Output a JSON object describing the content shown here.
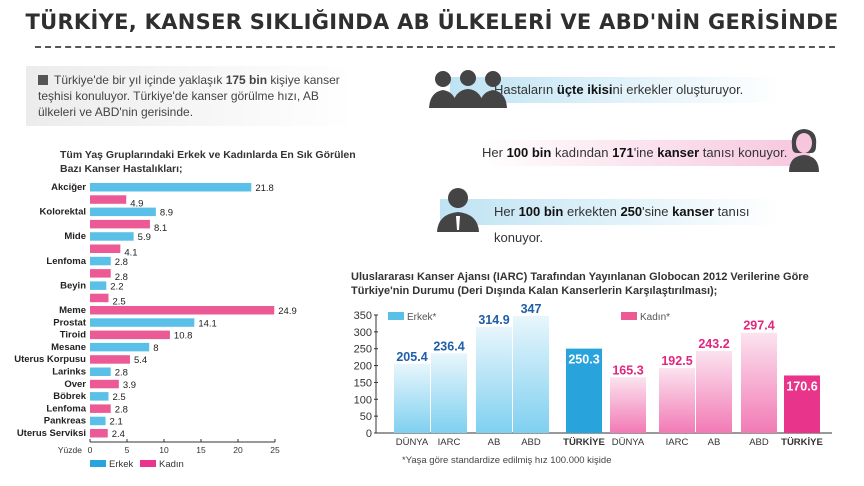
{
  "title": "TÜRKİYE, KANSER SIKLIĞINDA AB ÜLKELERİ VE ABD'NİN GERİSİNDE",
  "intro": {
    "pre": "Türkiye'de bir yıl içinde yaklaşık ",
    "bold": "175 bin",
    "post": " kişiye kanser teşhisi konuluyor. Türkiye'de kanser görülme hızı, AB ülkeleri ve ABD'nin gerisinde."
  },
  "facts": [
    {
      "parts": [
        [
          "Hastaların ",
          false
        ],
        [
          "üçte ikisi",
          true
        ],
        [
          "ni erkekler oluşturuyor.",
          false
        ]
      ],
      "icon": "people-group-icon"
    },
    {
      "parts": [
        [
          "Her ",
          false
        ],
        [
          "100 bin",
          true
        ],
        [
          " kadından ",
          false
        ],
        [
          "171",
          true
        ],
        [
          "'ine ",
          false
        ],
        [
          "kanser",
          true
        ],
        [
          " tanısı konuyor.",
          false
        ]
      ],
      "icon": "woman-icon"
    },
    {
      "parts": [
        [
          "Her ",
          false
        ],
        [
          "100 bin",
          true
        ],
        [
          " erkekten ",
          false
        ],
        [
          "250",
          true
        ],
        [
          "'sine ",
          false
        ],
        [
          "kanser",
          true
        ],
        [
          " tanısı konuyor.",
          false
        ]
      ],
      "icon": "man-icon"
    }
  ],
  "colors": {
    "erkek": "#5bc0e8",
    "kadin": "#ec5a96",
    "erkek_dark": "#29a3dc",
    "kadin_dark": "#e8348a",
    "erkek_text": "#1d5fa8",
    "kadin_text": "#e0267f"
  },
  "chart_data": [
    {
      "type": "bar",
      "orientation": "horizontal",
      "title": "Tüm Yaş Gruplarındaki Erkek ve Kadınlarda En Sık Görülen Bazı Kanser Hastalıkları;",
      "xlabel": "Yüzde",
      "xlim": [
        0,
        25
      ],
      "xticks": [
        0,
        5,
        10,
        15,
        20,
        25
      ],
      "legend": [
        {
          "name": "Erkek",
          "key": "erkek"
        },
        {
          "name": "Kadın",
          "key": "kadin"
        }
      ],
      "legend_position": "bottom-left",
      "bars": [
        {
          "label": "Akciğer",
          "sex": "erkek",
          "value": 21.8
        },
        {
          "label": "",
          "sex": "kadin",
          "value": 4.9
        },
        {
          "label": "Kolorektal",
          "sex": "erkek",
          "value": 8.9
        },
        {
          "label": "",
          "sex": "kadin",
          "value": 8.1
        },
        {
          "label": "Mide",
          "sex": "erkek",
          "value": 5.9
        },
        {
          "label": "",
          "sex": "kadin",
          "value": 4.1
        },
        {
          "label": "Lenfoma",
          "sex": "erkek",
          "value": 2.8
        },
        {
          "label": "",
          "sex": "kadin",
          "value": 2.8
        },
        {
          "label": "Beyin",
          "sex": "erkek",
          "value": 2.2
        },
        {
          "label": "",
          "sex": "kadin",
          "value": 2.5
        },
        {
          "label": "Meme",
          "sex": "kadin",
          "value": 24.9
        },
        {
          "label": "Prostat",
          "sex": "erkek",
          "value": 14.1
        },
        {
          "label": "Tiroid",
          "sex": "kadin",
          "value": 10.8
        },
        {
          "label": "Mesane",
          "sex": "erkek",
          "value": 8
        },
        {
          "label": "Uterus Korpusu",
          "sex": "kadin",
          "value": 5.4
        },
        {
          "label": "Larinks",
          "sex": "erkek",
          "value": 2.8
        },
        {
          "label": "Over",
          "sex": "kadin",
          "value": 3.9
        },
        {
          "label": "Böbrek",
          "sex": "erkek",
          "value": 2.5
        },
        {
          "label": "Lenfoma",
          "sex": "kadin",
          "value": 2.8
        },
        {
          "label": "Pankreas",
          "sex": "erkek",
          "value": 2.1
        },
        {
          "label": "Uterus Serviksi",
          "sex": "kadin",
          "value": 2.4
        }
      ]
    },
    {
      "type": "bar",
      "title": "Uluslararası Kanser Ajansı (IARC) Tarafından Yayınlanan Globocan 2012 Verilerine Göre Türkiye'nin Durumu (Deri Dışında Kalan Kanserlerin Karşılaştırılması);",
      "ylim": [
        0,
        350
      ],
      "yticks": [
        0,
        50,
        100,
        150,
        200,
        250,
        300,
        350
      ],
      "footnote": "*Yaşa göre standardize edilmiş hız 100.000 kişide",
      "series": [
        {
          "name": "Erkek*",
          "key": "erkek",
          "categories": [
            "DÜNYA",
            "IARC",
            "AB",
            "ABD",
            "TÜRKİYE"
          ],
          "values": [
            205.4,
            236.4,
            314.9,
            347,
            250.3
          ]
        },
        {
          "name": "Kadın*",
          "key": "kadin",
          "categories": [
            "DÜNYA",
            "IARC",
            "AB",
            "ABD",
            "TÜRKİYE"
          ],
          "values": [
            165.3,
            192.5,
            243.2,
            297.4,
            170.6
          ]
        }
      ],
      "highlight_category": "TÜRKİYE"
    }
  ]
}
